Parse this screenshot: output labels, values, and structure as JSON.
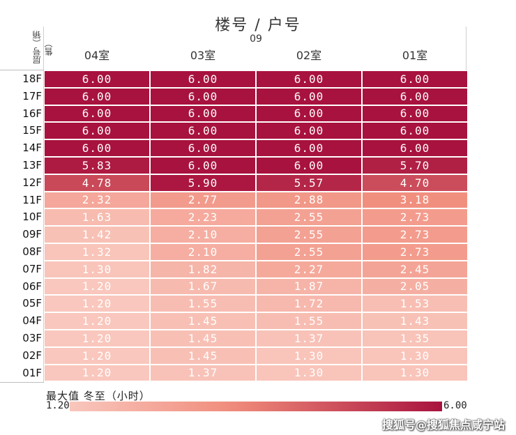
{
  "chart_data": {
    "type": "heatmap",
    "title": "楼号 / 户号",
    "subtitle": "09",
    "ylabel": "层号（销售）",
    "columns": [
      "04室",
      "03室",
      "02室",
      "01室"
    ],
    "rows": [
      "18F",
      "17F",
      "16F",
      "15F",
      "14F",
      "13F",
      "12F",
      "11F",
      "10F",
      "09F",
      "08F",
      "07F",
      "06F",
      "05F",
      "04F",
      "03F",
      "02F",
      "01F"
    ],
    "values": [
      [
        6.0,
        6.0,
        6.0,
        6.0
      ],
      [
        6.0,
        6.0,
        6.0,
        6.0
      ],
      [
        6.0,
        6.0,
        6.0,
        6.0
      ],
      [
        6.0,
        6.0,
        6.0,
        6.0
      ],
      [
        6.0,
        6.0,
        6.0,
        6.0
      ],
      [
        5.83,
        6.0,
        6.0,
        5.7
      ],
      [
        4.78,
        5.9,
        5.57,
        4.7
      ],
      [
        2.32,
        2.77,
        2.88,
        3.18
      ],
      [
        1.63,
        2.23,
        2.55,
        2.73
      ],
      [
        1.42,
        2.1,
        2.55,
        2.73
      ],
      [
        1.32,
        2.1,
        2.55,
        2.73
      ],
      [
        1.3,
        1.82,
        2.27,
        2.45
      ],
      [
        1.2,
        1.67,
        1.87,
        2.05
      ],
      [
        1.2,
        1.55,
        1.72,
        1.53
      ],
      [
        1.2,
        1.45,
        1.55,
        1.43
      ],
      [
        1.2,
        1.45,
        1.37,
        1.35
      ],
      [
        1.2,
        1.45,
        1.3,
        1.3
      ],
      [
        1.2,
        1.37,
        1.3,
        1.3
      ]
    ],
    "colorbar": {
      "label": "最大值 冬至（小时）",
      "min": 1.2,
      "max": 6.0,
      "min_label": "1.20",
      "max_label": "6.00"
    },
    "colors": {
      "low": "#f9c7bd",
      "mid": "#f08a79",
      "high": "#a8123e"
    }
  },
  "watermark_credit": "搜狐号@搜狐焦点咸宁站"
}
